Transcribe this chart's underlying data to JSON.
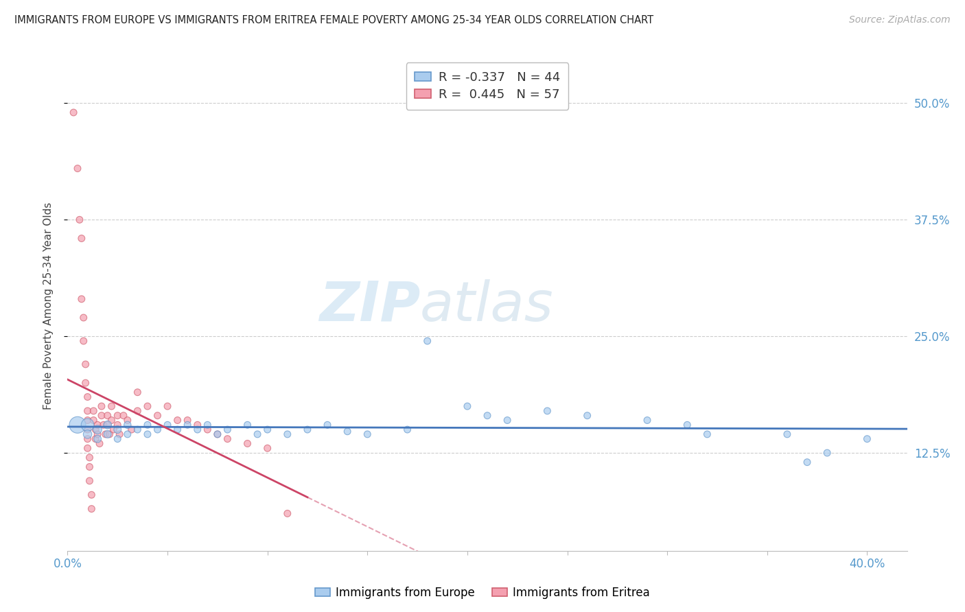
{
  "title": "IMMIGRANTS FROM EUROPE VS IMMIGRANTS FROM ERITREA FEMALE POVERTY AMONG 25-34 YEAR OLDS CORRELATION CHART",
  "source": "Source: ZipAtlas.com",
  "ylabel": "Female Poverty Among 25-34 Year Olds",
  "ytick_vals": [
    0.125,
    0.25,
    0.375,
    0.5
  ],
  "ytick_labels": [
    "12.5%",
    "25.0%",
    "37.5%",
    "50.0%"
  ],
  "xlim": [
    0.0,
    0.42
  ],
  "ylim": [
    0.02,
    0.545
  ],
  "watermark_zip": "ZIP",
  "watermark_atlas": "atlas",
  "eu_R": "-0.337",
  "eu_N": 44,
  "er_R": "0.445",
  "er_N": 57,
  "eu_color": "#aaccee",
  "eu_edge": "#6699cc",
  "er_color": "#f4a0b0",
  "er_edge": "#d06070",
  "eu_line_color": "#4477bb",
  "er_line_color": "#cc4466",
  "europe_points": [
    [
      0.005,
      0.155,
      300
    ],
    [
      0.01,
      0.155,
      180
    ],
    [
      0.01,
      0.145,
      80
    ],
    [
      0.015,
      0.15,
      80
    ],
    [
      0.015,
      0.14,
      60
    ],
    [
      0.02,
      0.155,
      70
    ],
    [
      0.02,
      0.145,
      60
    ],
    [
      0.025,
      0.15,
      60
    ],
    [
      0.025,
      0.14,
      50
    ],
    [
      0.03,
      0.155,
      55
    ],
    [
      0.03,
      0.145,
      50
    ],
    [
      0.035,
      0.15,
      50
    ],
    [
      0.04,
      0.155,
      50
    ],
    [
      0.04,
      0.145,
      50
    ],
    [
      0.045,
      0.15,
      50
    ],
    [
      0.05,
      0.155,
      50
    ],
    [
      0.055,
      0.15,
      50
    ],
    [
      0.06,
      0.155,
      50
    ],
    [
      0.065,
      0.15,
      50
    ],
    [
      0.07,
      0.155,
      50
    ],
    [
      0.075,
      0.145,
      50
    ],
    [
      0.08,
      0.15,
      50
    ],
    [
      0.09,
      0.155,
      50
    ],
    [
      0.095,
      0.145,
      50
    ],
    [
      0.1,
      0.15,
      50
    ],
    [
      0.11,
      0.145,
      50
    ],
    [
      0.12,
      0.15,
      50
    ],
    [
      0.13,
      0.155,
      50
    ],
    [
      0.14,
      0.148,
      50
    ],
    [
      0.15,
      0.145,
      50
    ],
    [
      0.17,
      0.15,
      50
    ],
    [
      0.18,
      0.245,
      50
    ],
    [
      0.2,
      0.175,
      50
    ],
    [
      0.21,
      0.165,
      50
    ],
    [
      0.22,
      0.16,
      50
    ],
    [
      0.24,
      0.17,
      50
    ],
    [
      0.26,
      0.165,
      50
    ],
    [
      0.29,
      0.16,
      50
    ],
    [
      0.31,
      0.155,
      50
    ],
    [
      0.32,
      0.145,
      50
    ],
    [
      0.36,
      0.145,
      50
    ],
    [
      0.37,
      0.115,
      50
    ],
    [
      0.38,
      0.125,
      50
    ],
    [
      0.4,
      0.14,
      50
    ]
  ],
  "eritrea_points": [
    [
      0.003,
      0.49,
      50
    ],
    [
      0.005,
      0.43,
      50
    ],
    [
      0.006,
      0.375,
      50
    ],
    [
      0.007,
      0.355,
      50
    ],
    [
      0.007,
      0.29,
      50
    ],
    [
      0.008,
      0.27,
      50
    ],
    [
      0.008,
      0.245,
      50
    ],
    [
      0.009,
      0.22,
      50
    ],
    [
      0.009,
      0.2,
      50
    ],
    [
      0.01,
      0.185,
      50
    ],
    [
      0.01,
      0.17,
      50
    ],
    [
      0.01,
      0.16,
      50
    ],
    [
      0.01,
      0.15,
      50
    ],
    [
      0.01,
      0.14,
      50
    ],
    [
      0.01,
      0.13,
      50
    ],
    [
      0.011,
      0.12,
      50
    ],
    [
      0.011,
      0.11,
      50
    ],
    [
      0.011,
      0.095,
      50
    ],
    [
      0.012,
      0.08,
      50
    ],
    [
      0.012,
      0.065,
      50
    ],
    [
      0.013,
      0.17,
      50
    ],
    [
      0.013,
      0.16,
      50
    ],
    [
      0.014,
      0.15,
      50
    ],
    [
      0.014,
      0.14,
      50
    ],
    [
      0.015,
      0.155,
      50
    ],
    [
      0.015,
      0.145,
      50
    ],
    [
      0.016,
      0.135,
      50
    ],
    [
      0.017,
      0.175,
      50
    ],
    [
      0.017,
      0.165,
      50
    ],
    [
      0.018,
      0.155,
      50
    ],
    [
      0.019,
      0.145,
      50
    ],
    [
      0.02,
      0.165,
      50
    ],
    [
      0.02,
      0.155,
      50
    ],
    [
      0.021,
      0.145,
      50
    ],
    [
      0.022,
      0.175,
      50
    ],
    [
      0.022,
      0.16,
      50
    ],
    [
      0.023,
      0.15,
      50
    ],
    [
      0.025,
      0.165,
      50
    ],
    [
      0.025,
      0.155,
      50
    ],
    [
      0.026,
      0.145,
      50
    ],
    [
      0.028,
      0.165,
      50
    ],
    [
      0.03,
      0.16,
      50
    ],
    [
      0.032,
      0.15,
      50
    ],
    [
      0.035,
      0.19,
      50
    ],
    [
      0.035,
      0.17,
      50
    ],
    [
      0.04,
      0.175,
      50
    ],
    [
      0.045,
      0.165,
      50
    ],
    [
      0.05,
      0.175,
      50
    ],
    [
      0.055,
      0.16,
      50
    ],
    [
      0.06,
      0.16,
      50
    ],
    [
      0.065,
      0.155,
      50
    ],
    [
      0.07,
      0.15,
      50
    ],
    [
      0.075,
      0.145,
      50
    ],
    [
      0.08,
      0.14,
      50
    ],
    [
      0.09,
      0.135,
      50
    ],
    [
      0.1,
      0.13,
      50
    ],
    [
      0.11,
      0.06,
      50
    ]
  ]
}
